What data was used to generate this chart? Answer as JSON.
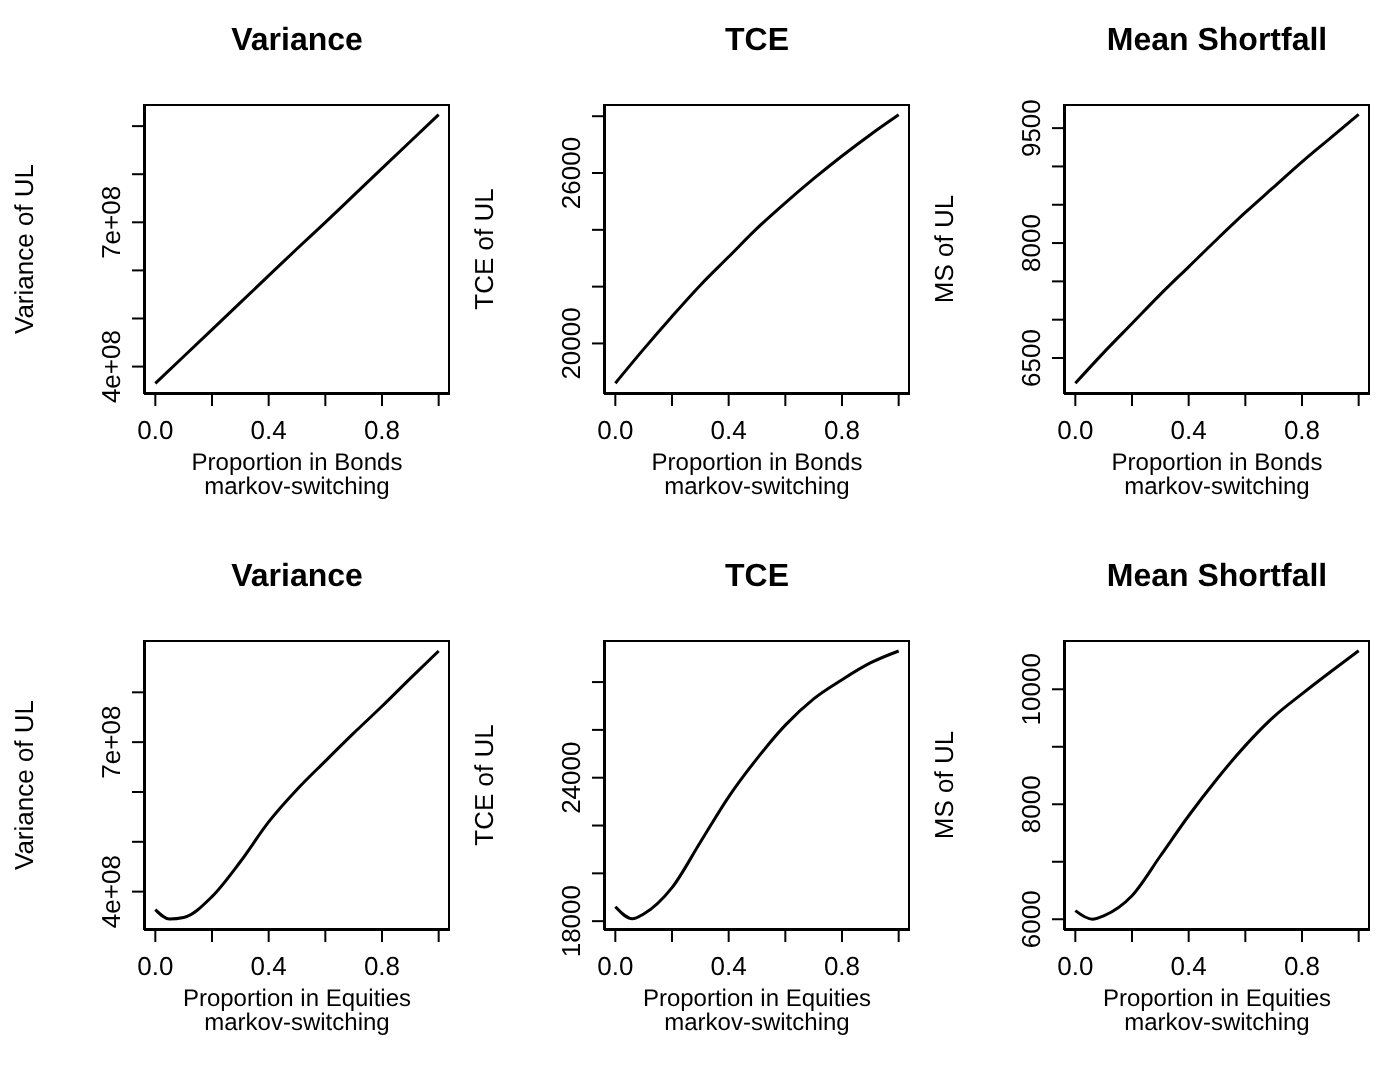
{
  "chart_data": [
    {
      "type": "line",
      "title": "Variance",
      "xlabel": "Proportion in Bonds\nmarkov-switching",
      "ylabel": "Variance of UL",
      "color": "#000000",
      "x": [
        0,
        0.1,
        0.2,
        0.3,
        0.4,
        0.5,
        0.6,
        0.7,
        0.8,
        0.9,
        1.0
      ],
      "values": [
        365000000,
        421000000,
        477000000,
        533000000,
        589000000,
        645000000,
        700000000,
        756000000,
        812000000,
        868000000,
        924000000
      ],
      "xlim": [
        -0.04,
        1.04
      ],
      "ylim": [
        343000000,
        946000000
      ],
      "xticks": [
        {
          "value": 0,
          "label": "0.0"
        },
        {
          "value": 0.2,
          "label": null
        },
        {
          "value": 0.4,
          "label": "0.4"
        },
        {
          "value": 0.6,
          "label": null
        },
        {
          "value": 0.8,
          "label": "0.8"
        },
        {
          "value": 1.0,
          "label": null
        }
      ],
      "yticks": [
        {
          "value": 400000000,
          "label": "4e+08"
        },
        {
          "value": 500000000,
          "label": null
        },
        {
          "value": 600000000,
          "label": null
        },
        {
          "value": 700000000,
          "label": "7e+08"
        },
        {
          "value": 800000000,
          "label": null
        },
        {
          "value": 900000000,
          "label": null
        }
      ]
    },
    {
      "type": "line",
      "title": "TCE",
      "xlabel": "Proportion in Bonds\nmarkov-switching",
      "ylabel": "TCE of UL",
      "color": "#000000",
      "x": [
        0,
        0.1,
        0.2,
        0.3,
        0.4,
        0.5,
        0.6,
        0.7,
        0.8,
        0.9,
        1.0
      ],
      "values": [
        18600,
        19800,
        20950,
        22050,
        23050,
        24050,
        24950,
        25800,
        26600,
        27350,
        28050
      ],
      "xlim": [
        -0.04,
        1.04
      ],
      "ylim": [
        18220,
        28430
      ],
      "xticks": [
        {
          "value": 0,
          "label": "0.0"
        },
        {
          "value": 0.2,
          "label": null
        },
        {
          "value": 0.4,
          "label": "0.4"
        },
        {
          "value": 0.6,
          "label": null
        },
        {
          "value": 0.8,
          "label": "0.8"
        },
        {
          "value": 1.0,
          "label": null
        }
      ],
      "yticks": [
        20000,
        {
          "value": 22000,
          "label": null
        },
        {
          "value": 24000,
          "label": null
        },
        26000,
        {
          "value": 28000,
          "label": null
        }
      ]
    },
    {
      "type": "line",
      "title": "Mean Shortfall",
      "xlabel": "Proportion in Bonds\nmarkov-switching",
      "ylabel": "MS of UL",
      "color": "#000000",
      "x": [
        0,
        0.1,
        0.2,
        0.3,
        0.4,
        0.5,
        0.6,
        0.7,
        0.8,
        0.9,
        1.0
      ],
      "values": [
        6170,
        6570,
        6950,
        7330,
        7690,
        8050,
        8400,
        8730,
        9060,
        9370,
        9680
      ],
      "xlim": [
        -0.04,
        1.04
      ],
      "ylim": [
        6030,
        9815
      ],
      "xticks": [
        {
          "value": 0,
          "label": "0.0"
        },
        {
          "value": 0.2,
          "label": null
        },
        {
          "value": 0.4,
          "label": "0.4"
        },
        {
          "value": 0.6,
          "label": null
        },
        {
          "value": 0.8,
          "label": "0.8"
        },
        {
          "value": 1.0,
          "label": null
        }
      ],
      "yticks": [
        6500,
        {
          "value": 7000,
          "label": null
        },
        {
          "value": 7500,
          "label": null
        },
        8000,
        {
          "value": 8500,
          "label": null
        },
        {
          "value": 9000,
          "label": null
        },
        9500
      ]
    },
    {
      "type": "line",
      "title": "Variance",
      "xlabel": "Proportion in Equities\nmarkov-switching",
      "ylabel": "Variance of UL",
      "color": "#000000",
      "x": [
        0,
        0.05,
        0.1,
        0.2,
        0.3,
        0.4,
        0.5,
        0.6,
        0.7,
        0.8,
        0.9,
        1.0
      ],
      "values": [
        364000000,
        345000000,
        348000000,
        390000000,
        460000000,
        540000000,
        605000000,
        662000000,
        718000000,
        772000000,
        828000000,
        883000000
      ],
      "xlim": [
        -0.04,
        1.04
      ],
      "ylim": [
        323000000,
        905000000
      ],
      "xticks": [
        {
          "value": 0,
          "label": "0.0"
        },
        {
          "value": 0.2,
          "label": null
        },
        {
          "value": 0.4,
          "label": "0.4"
        },
        {
          "value": 0.6,
          "label": null
        },
        {
          "value": 0.8,
          "label": "0.8"
        },
        {
          "value": 1.0,
          "label": null
        }
      ],
      "yticks": [
        {
          "value": 400000000,
          "label": "4e+08"
        },
        {
          "value": 500000000,
          "label": null
        },
        {
          "value": 600000000,
          "label": null
        },
        {
          "value": 700000000,
          "label": "7e+08"
        },
        {
          "value": 800000000,
          "label": null
        }
      ]
    },
    {
      "type": "line",
      "title": "TCE",
      "xlabel": "Proportion in Equities\nmarkov-switching",
      "ylabel": "TCE of UL",
      "color": "#000000",
      "x": [
        0,
        0.06,
        0.1,
        0.2,
        0.3,
        0.4,
        0.5,
        0.6,
        0.7,
        0.8,
        0.9,
        1.0
      ],
      "values": [
        18600,
        18100,
        18300,
        19400,
        21300,
        23200,
        24800,
        26200,
        27300,
        28100,
        28800,
        29300
      ],
      "xlim": [
        -0.04,
        1.04
      ],
      "ylim": [
        17630,
        29760
      ],
      "xticks": [
        {
          "value": 0,
          "label": "0.0"
        },
        {
          "value": 0.2,
          "label": null
        },
        {
          "value": 0.4,
          "label": "0.4"
        },
        {
          "value": 0.6,
          "label": null
        },
        {
          "value": 0.8,
          "label": "0.8"
        },
        {
          "value": 1.0,
          "label": null
        }
      ],
      "yticks": [
        18000,
        {
          "value": 20000,
          "label": null
        },
        {
          "value": 22000,
          "label": null
        },
        24000,
        {
          "value": 26000,
          "label": null
        },
        {
          "value": 28000,
          "label": null
        }
      ]
    },
    {
      "type": "line",
      "title": "Mean Shortfall",
      "xlabel": "Proportion in Equities\nmarkov-switching",
      "ylabel": "MS of UL",
      "color": "#000000",
      "x": [
        0,
        0.06,
        0.1,
        0.2,
        0.3,
        0.4,
        0.5,
        0.6,
        0.7,
        0.8,
        0.9,
        1.0
      ],
      "values": [
        6150,
        6000,
        6060,
        6410,
        7100,
        7800,
        8440,
        9020,
        9520,
        9920,
        10300,
        10670
      ],
      "xlim": [
        -0.04,
        1.04
      ],
      "ylim": [
        5813,
        10857
      ],
      "xticks": [
        {
          "value": 0,
          "label": "0.0"
        },
        {
          "value": 0.2,
          "label": null
        },
        {
          "value": 0.4,
          "label": "0.4"
        },
        {
          "value": 0.6,
          "label": null
        },
        {
          "value": 0.8,
          "label": "0.8"
        },
        {
          "value": 1.0,
          "label": null
        }
      ],
      "yticks": [
        6000,
        {
          "value": 7000,
          "label": null
        },
        8000,
        {
          "value": 9000,
          "label": null
        },
        10000
      ]
    }
  ]
}
